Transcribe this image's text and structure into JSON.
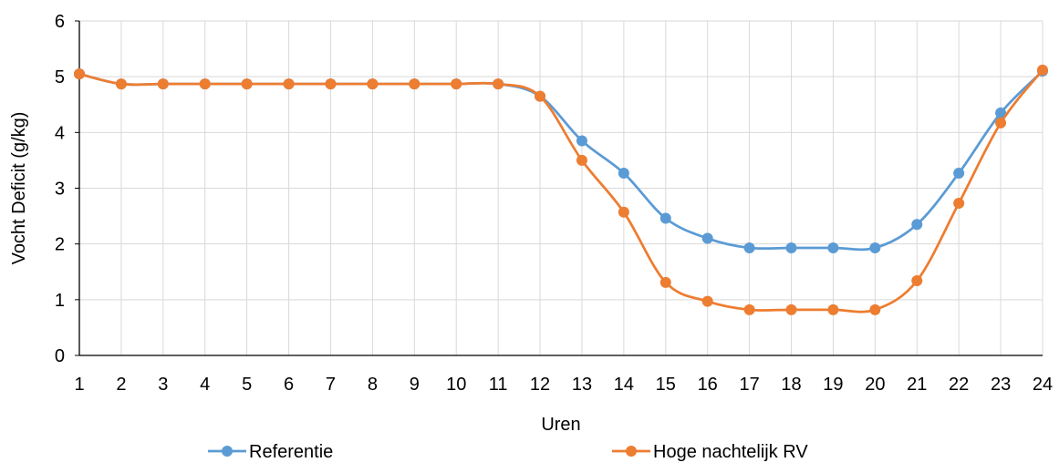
{
  "chart_data": {
    "type": "line",
    "title": "",
    "xlabel": "Uren",
    "ylabel": "Vocht Deficit (g/kg)",
    "x": [
      1,
      2,
      3,
      4,
      5,
      6,
      7,
      8,
      9,
      10,
      11,
      12,
      13,
      14,
      15,
      16,
      17,
      18,
      19,
      20,
      21,
      22,
      23,
      24
    ],
    "xticks": [
      "1",
      "2",
      "3",
      "4",
      "5",
      "6",
      "7",
      "8",
      "9",
      "10",
      "11",
      "12",
      "13",
      "14",
      "15",
      "16",
      "17",
      "18",
      "19",
      "20",
      "21",
      "22",
      "23",
      "24"
    ],
    "yticks": [
      "0",
      "1",
      "2",
      "3",
      "4",
      "5",
      "6"
    ],
    "xlim": [
      1,
      24
    ],
    "ylim": [
      0,
      6
    ],
    "grid": true,
    "smooth": true,
    "legend_position": "bottom",
    "series": [
      {
        "name": "Referentie",
        "color": "#5B9BD5",
        "values": [
          5.05,
          4.87,
          4.87,
          4.87,
          4.87,
          4.87,
          4.87,
          4.87,
          4.87,
          4.87,
          4.87,
          4.65,
          3.85,
          3.27,
          2.46,
          2.1,
          1.93,
          1.93,
          1.93,
          1.93,
          2.35,
          3.27,
          4.35,
          5.1
        ]
      },
      {
        "name": "Hoge nachtelijk RV",
        "color": "#ED7D31",
        "values": [
          5.05,
          4.87,
          4.87,
          4.87,
          4.87,
          4.87,
          4.87,
          4.87,
          4.87,
          4.87,
          4.87,
          4.65,
          3.5,
          2.57,
          1.31,
          0.97,
          0.82,
          0.82,
          0.82,
          0.82,
          1.34,
          2.73,
          4.17,
          5.12
        ]
      }
    ]
  }
}
